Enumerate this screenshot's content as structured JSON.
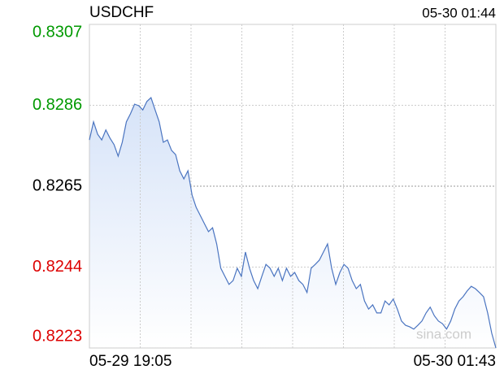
{
  "chart_data": {
    "type": "line",
    "title": "USDCHF",
    "timestamp": "05-30 01:44",
    "watermark": "sina.com",
    "color": "#4a74c0",
    "ylim": [
      0.8223,
      0.8307
    ],
    "yticks": [
      0.8223,
      0.8244,
      0.8265,
      0.8286,
      0.8307
    ],
    "ytick_colors": [
      "#dd0000",
      "#dd0000",
      "#000000",
      "#009900",
      "#009900"
    ],
    "grid": true,
    "categories": [
      "05-29 19:05",
      null,
      null,
      null,
      null,
      null,
      null,
      null,
      null,
      null,
      null,
      null,
      null,
      null,
      null,
      null,
      null,
      null,
      null,
      null,
      null,
      null,
      null,
      null,
      null,
      null,
      null,
      null,
      null,
      null,
      null,
      null,
      null,
      null,
      null,
      null,
      null,
      null,
      null,
      null,
      null,
      null,
      null,
      null,
      null,
      null,
      null,
      null,
      null,
      null,
      null,
      null,
      null,
      null,
      null,
      null,
      null,
      null,
      null,
      null,
      null,
      null,
      null,
      null,
      null,
      null,
      null,
      null,
      null,
      null,
      null,
      null,
      null,
      null,
      null,
      null,
      null,
      null,
      null,
      null,
      null,
      null,
      null,
      null,
      null,
      null,
      null,
      null,
      null,
      null,
      null,
      null,
      null,
      null,
      null,
      null,
      null,
      null,
      null,
      "05-30 01:43"
    ],
    "values": [
      0.8277,
      0.82817,
      0.82785,
      0.8277,
      0.82796,
      0.82775,
      0.82758,
      0.82728,
      0.82764,
      0.82817,
      0.82838,
      0.82863,
      0.82859,
      0.82848,
      0.8287,
      0.8288,
      0.82848,
      0.82817,
      0.82764,
      0.8277,
      0.82743,
      0.82732,
      0.8269,
      0.82669,
      0.8269,
      0.82627,
      0.82595,
      0.82574,
      0.82553,
      0.82532,
      0.82542,
      0.825,
      0.82437,
      0.82416,
      0.82395,
      0.82405,
      0.82437,
      0.82416,
      0.82479,
      0.82437,
      0.82405,
      0.82384,
      0.82416,
      0.82447,
      0.82437,
      0.82416,
      0.82437,
      0.82405,
      0.82437,
      0.82416,
      0.82426,
      0.82405,
      0.82395,
      0.82374,
      0.82437,
      0.82447,
      0.82458,
      0.82479,
      0.825,
      0.82437,
      0.82395,
      0.82426,
      0.82447,
      0.82437,
      0.82405,
      0.82384,
      0.82395,
      0.82352,
      0.82331,
      0.82342,
      0.82321,
      0.82321,
      0.82352,
      0.82342,
      0.82357,
      0.82331,
      0.823,
      0.82289,
      0.82285,
      0.82279,
      0.82289,
      0.823,
      0.82321,
      0.82336,
      0.82314,
      0.823,
      0.82293,
      0.82279,
      0.823,
      0.82331,
      0.82352,
      0.82363,
      0.82378,
      0.8239,
      0.82384,
      0.82374,
      0.82363,
      0.82321,
      0.82268,
      0.8223
    ]
  }
}
